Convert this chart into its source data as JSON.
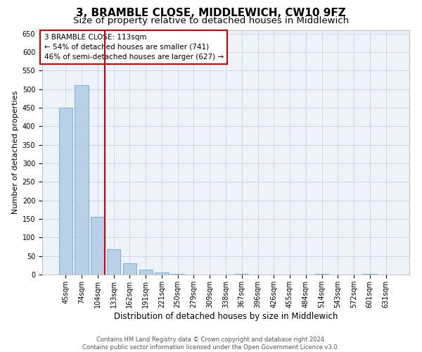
{
  "title": "3, BRAMBLE CLOSE, MIDDLEWICH, CW10 9FZ",
  "subtitle": "Size of property relative to detached houses in Middlewich",
  "xlabel": "Distribution of detached houses by size in Middlewich",
  "ylabel": "Number of detached properties",
  "categories": [
    "45sqm",
    "74sqm",
    "104sqm",
    "133sqm",
    "162sqm",
    "191sqm",
    "221sqm",
    "250sqm",
    "279sqm",
    "309sqm",
    "338sqm",
    "367sqm",
    "396sqm",
    "426sqm",
    "455sqm",
    "484sqm",
    "514sqm",
    "543sqm",
    "572sqm",
    "601sqm",
    "631sqm"
  ],
  "values": [
    450,
    510,
    155,
    68,
    30,
    14,
    5,
    2,
    0,
    0,
    0,
    2,
    0,
    0,
    0,
    0,
    2,
    0,
    0,
    2,
    0
  ],
  "bar_color": "#b8d0e8",
  "bar_edge_color": "#6aaad4",
  "vline_x_index": 2,
  "vline_color": "#cc0000",
  "annotation_text": "3 BRAMBLE CLOSE: 113sqm\n← 54% of detached houses are smaller (741)\n46% of semi-detached houses are larger (627) →",
  "annotation_box_color": "#cc0000",
  "ylim": [
    0,
    660
  ],
  "yticks": [
    0,
    50,
    100,
    150,
    200,
    250,
    300,
    350,
    400,
    450,
    500,
    550,
    600,
    650
  ],
  "footer": "Contains HM Land Registry data © Crown copyright and database right 2024.\nContains public sector information licensed under the Open Government Licence v3.0.",
  "bg_color": "#eef2f9",
  "grid_color": "#c5d5e8",
  "title_fontsize": 11,
  "subtitle_fontsize": 9.5,
  "xlabel_fontsize": 8.5,
  "ylabel_fontsize": 8,
  "tick_fontsize": 7,
  "annotation_fontsize": 7.5,
  "footer_fontsize": 6
}
